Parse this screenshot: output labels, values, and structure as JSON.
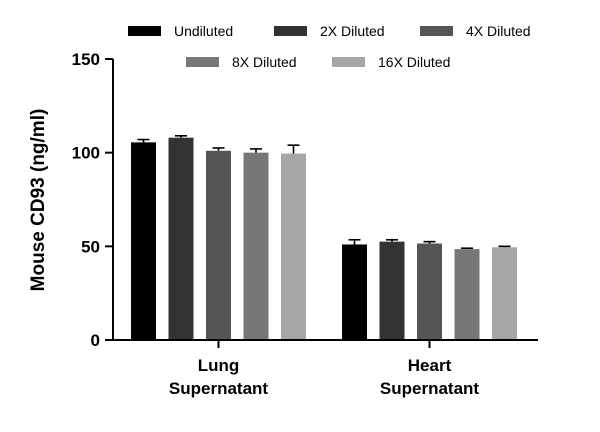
{
  "chart_data": {
    "type": "bar",
    "ylabel": "Mouse CD93 (ng/ml)",
    "ylim": [
      0,
      150
    ],
    "yticks": [
      0,
      50,
      100,
      150
    ],
    "categories": [
      [
        "Lung",
        "Supernatant"
      ],
      [
        "Heart",
        "Supernatant"
      ]
    ],
    "series": [
      {
        "name": "Undiluted",
        "color": "#000000",
        "values": [
          105.5,
          51.0
        ],
        "errors": [
          1.5,
          2.5
        ]
      },
      {
        "name": "2X Diluted",
        "color": "#333333",
        "values": [
          108.0,
          52.5
        ],
        "errors": [
          1.0,
          1.0
        ]
      },
      {
        "name": "4X Diluted",
        "color": "#555555",
        "values": [
          101.0,
          51.5
        ],
        "errors": [
          1.5,
          1.0
        ]
      },
      {
        "name": "8X Diluted",
        "color": "#777777",
        "values": [
          100.0,
          48.5
        ],
        "errors": [
          2.0,
          0.5
        ]
      },
      {
        "name": "16X Diluted",
        "color": "#a6a6a6",
        "values": [
          99.5,
          49.5
        ],
        "errors": [
          4.5,
          0.5
        ]
      }
    ],
    "legend_position": "top",
    "grid": false
  }
}
